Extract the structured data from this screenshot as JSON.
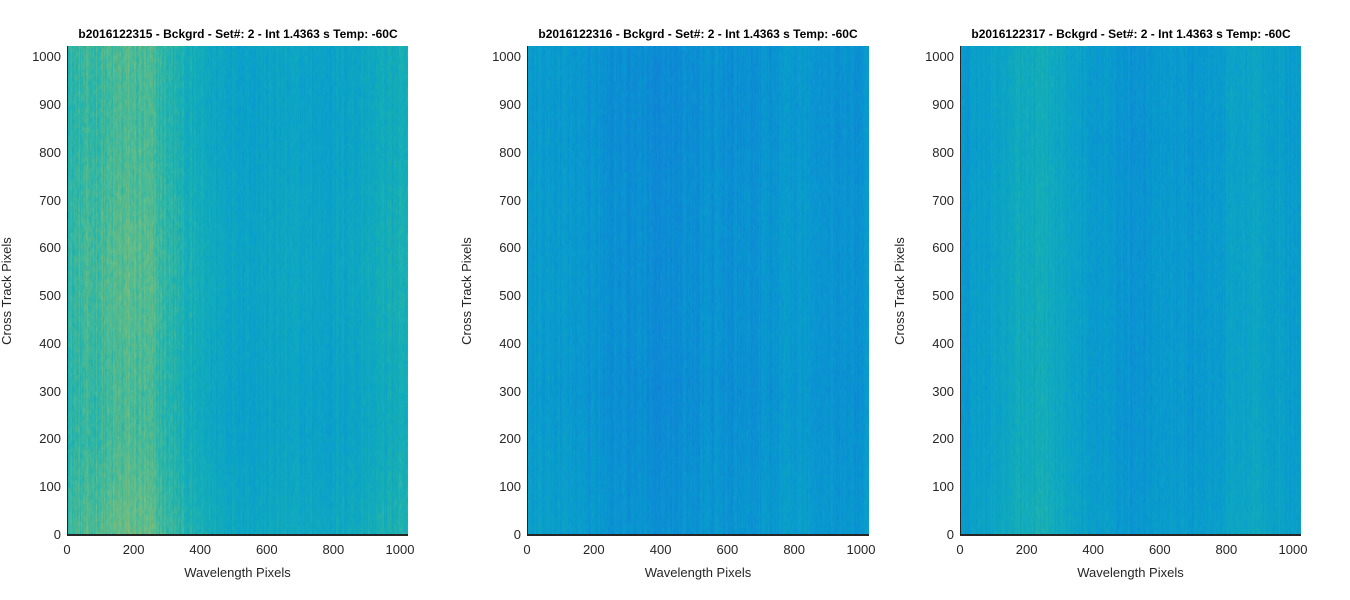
{
  "chart_data": [
    {
      "type": "heatmap",
      "title": "b2016122315 - Bckgrd - Set#: 2 - Int 1.4363 s Temp: -60C",
      "xlabel": "Wavelength Pixels",
      "ylabel": "Cross Track Pixels",
      "xlim": [
        0,
        1024
      ],
      "ylim": [
        0,
        1024
      ],
      "xticks": [
        "0",
        "200",
        "400",
        "600",
        "800",
        "1000"
      ],
      "yticks": [
        "0",
        "100",
        "200",
        "300",
        "400",
        "500",
        "600",
        "700",
        "800",
        "900",
        "1000"
      ],
      "colormap": "parula",
      "column_profile": [
        0.62,
        0.64,
        0.66,
        0.68,
        0.66,
        0.6,
        0.55,
        0.52,
        0.5,
        0.49,
        0.5,
        0.5,
        0.49,
        0.5,
        0.52,
        0.55,
        0.56
      ],
      "row_profile": [
        0.04,
        0.02,
        0.0,
        0.0,
        0.01,
        0.02,
        0.02,
        0.01,
        0.0,
        0.0,
        0.01
      ],
      "noise": 0.09
    },
    {
      "type": "heatmap",
      "title": "b2016122316 - Bckgrd - Set#: 2 - Int 1.4363 s Temp: -60C",
      "xlabel": "Wavelength Pixels",
      "ylabel": "Cross Track Pixels",
      "xlim": [
        0,
        1024
      ],
      "ylim": [
        0,
        1024
      ],
      "xticks": [
        "0",
        "200",
        "400",
        "600",
        "800",
        "1000"
      ],
      "yticks": [
        "0",
        "100",
        "200",
        "300",
        "400",
        "500",
        "600",
        "700",
        "800",
        "900",
        "1000"
      ],
      "colormap": "parula",
      "column_profile": [
        0.46,
        0.45,
        0.44,
        0.42,
        0.4,
        0.39,
        0.38,
        0.39,
        0.4,
        0.4,
        0.39,
        0.41,
        0.44,
        0.45,
        0.42,
        0.41,
        0.42
      ],
      "row_profile": [
        0.02,
        0.01,
        0.0,
        -0.01,
        0.0,
        0.0,
        0.0,
        0.0,
        -0.01,
        -0.01,
        0.0
      ],
      "noise": 0.09
    },
    {
      "type": "heatmap",
      "title": "b2016122317 - Bckgrd - Set#: 2 - Int 1.4363 s Temp: -60C",
      "xlabel": "Wavelength Pixels",
      "ylabel": "Cross Track Pixels",
      "xlim": [
        0,
        1024
      ],
      "ylim": [
        0,
        1024
      ],
      "xticks": [
        "0",
        "200",
        "400",
        "600",
        "800",
        "1000"
      ],
      "yticks": [
        "0",
        "100",
        "200",
        "300",
        "400",
        "500",
        "600",
        "700",
        "800",
        "900",
        "1000"
      ],
      "colormap": "parula",
      "column_profile": [
        0.44,
        0.47,
        0.52,
        0.55,
        0.56,
        0.52,
        0.47,
        0.44,
        0.42,
        0.43,
        0.44,
        0.43,
        0.45,
        0.5,
        0.49,
        0.47,
        0.46
      ],
      "row_profile": [
        0.02,
        0.01,
        0.0,
        0.0,
        0.0,
        0.0,
        0.0,
        0.0,
        -0.01,
        0.0,
        0.0
      ],
      "noise": 0.09
    }
  ]
}
